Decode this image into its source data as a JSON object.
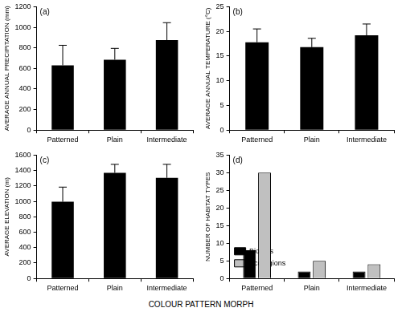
{
  "chart_data": [
    {
      "type": "bar",
      "annotation": "(a)",
      "ylabel": "AVERAGE ANNUAL PRECIPITATION (mm)",
      "categories": [
        "Patterned",
        "Plain",
        "Intermediate"
      ],
      "values": [
        630,
        685,
        875
      ],
      "errors": [
        195,
        110,
        170
      ],
      "color": "#000000",
      "ylim": [
        0,
        1200
      ],
      "yticks": [
        0,
        200,
        400,
        600,
        800,
        1000,
        1200
      ],
      "grid": false
    },
    {
      "type": "bar",
      "annotation": "(b)",
      "ylabel": "AVERAGE ANNUAL TEMPERATURE (°C)",
      "categories": [
        "Patterned",
        "Plain",
        "Intermediate"
      ],
      "values": [
        17.8,
        16.8,
        19.2
      ],
      "errors": [
        2.7,
        1.8,
        2.3
      ],
      "color": "#000000",
      "ylim": [
        0,
        25
      ],
      "yticks": [
        0,
        5,
        10,
        15,
        20,
        25
      ],
      "grid": false
    },
    {
      "type": "bar",
      "annotation": "(c)",
      "ylabel": "AVERAGE ELEVATION (m)",
      "categories": [
        "Patterned",
        "Plain",
        "Intermediate"
      ],
      "values": [
        995,
        1370,
        1305
      ],
      "errors": [
        190,
        110,
        175
      ],
      "color": "#000000",
      "ylim": [
        0,
        1600
      ],
      "yticks": [
        0,
        200,
        400,
        600,
        800,
        1000,
        1200,
        1400,
        1600
      ],
      "grid": false
    },
    {
      "type": "bar",
      "annotation": "(d)",
      "ylabel": "NUMBER OF HABITAT TYPES",
      "categories": [
        "Patterned",
        "Plain",
        "Intermediate"
      ],
      "series": [
        {
          "name": "Biomes",
          "color": "#000000",
          "values": [
            8,
            2,
            2
          ]
        },
        {
          "name": "Ecoregions",
          "color": "#c0c0c0",
          "values": [
            30,
            5,
            4
          ]
        }
      ],
      "legend": "upper right",
      "ylim": [
        0,
        35
      ],
      "yticks": [
        0,
        5,
        10,
        15,
        20,
        25,
        30,
        35
      ],
      "grid": false
    }
  ],
  "xlabel": "COLOUR PATTERN MORPH"
}
